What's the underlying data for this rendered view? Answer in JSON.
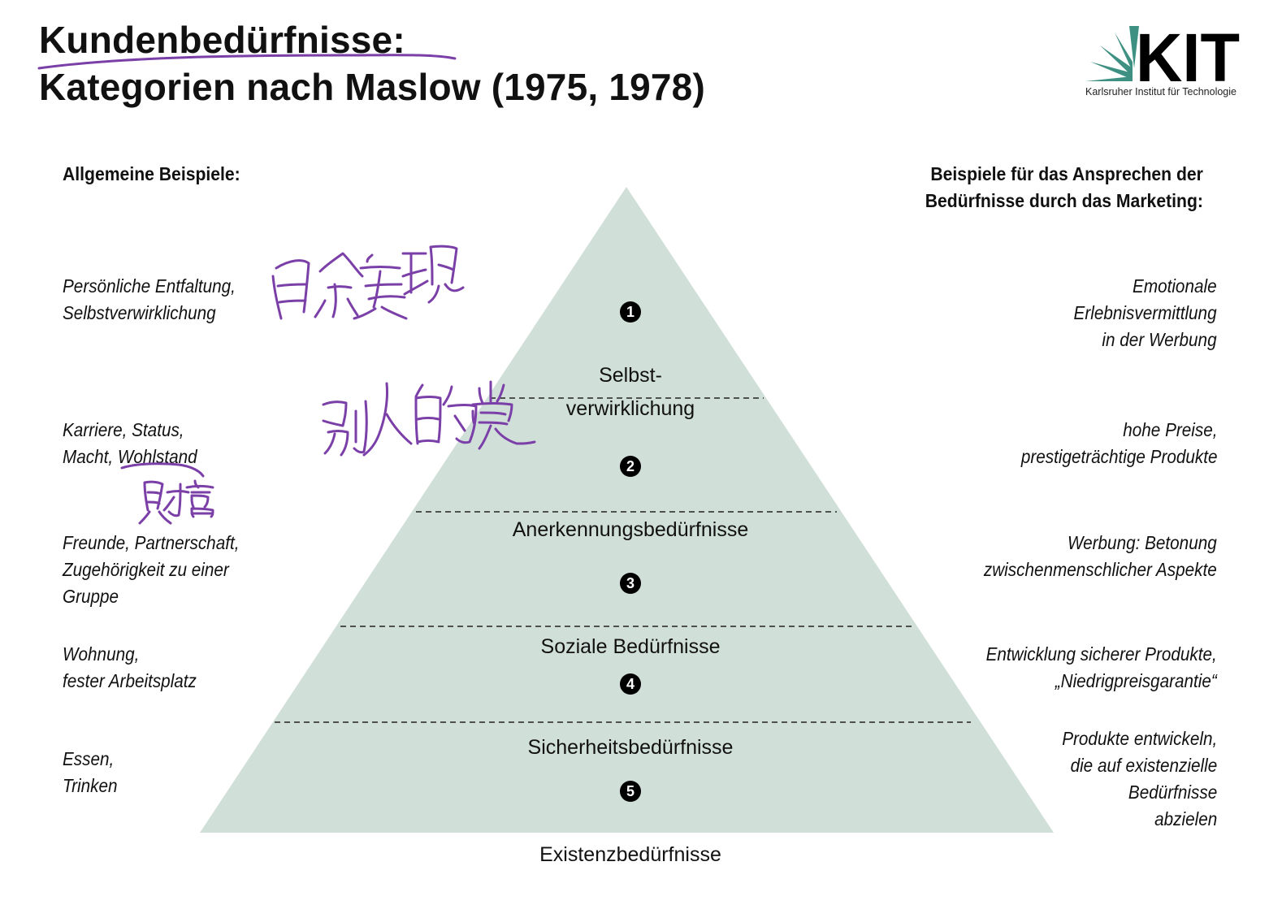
{
  "title": {
    "line1": "Kundenbedürfnisse:",
    "line2": "Kategorien nach Maslow (1975, 1978)"
  },
  "logo": {
    "text": "KIT",
    "subtitle": "Karlsruher Institut für Technologie",
    "color": "#3e9182"
  },
  "headings": {
    "left": "Allgemeine Beispiele:",
    "right": "Beispiele für das Ansprechen der\nBedürfnisse durch das Marketing:"
  },
  "pyramid": {
    "fill": "#d1dfd9",
    "levels": [
      {
        "number": "1",
        "label": "Selbst-\nverwirklichung"
      },
      {
        "number": "2",
        "label": "Anerkennungsbedürfnisse"
      },
      {
        "number": "3",
        "label": "Soziale Bedürfnisse"
      },
      {
        "number": "4",
        "label": "Sicherheitsbedürfnisse"
      },
      {
        "number": "5",
        "label": "Existenzbedürfnisse"
      }
    ]
  },
  "left_examples": [
    "Persönliche Entfaltung,\nSelbstverwirklichung",
    "Karriere, Status,\nMacht, Wohlstand",
    "Freunde, Partnerschaft,\nZugehörigkeit zu einer\nGruppe",
    "Wohnung,\nfester Arbeitsplatz",
    "Essen,\nTrinken"
  ],
  "right_examples": [
    "Emotionale\nErlebnisvermittlung\nin der Werbung",
    "hohe Preise,\nprestigeträchtige Produkte",
    "Werbung: Betonung\nzwischenmenschlicher Aspekte",
    "Entwicklung sicherer Produkte,\n„Niedrigpreisgarantie“",
    "Produkte entwickeln,\ndie auf existenzielle\nBedürfnisse\nabzielen"
  ],
  "annotations": {
    "ink_color": "#7b3fa8",
    "notes": [
      "自我实现",
      "别人的肯定",
      "财富"
    ]
  }
}
